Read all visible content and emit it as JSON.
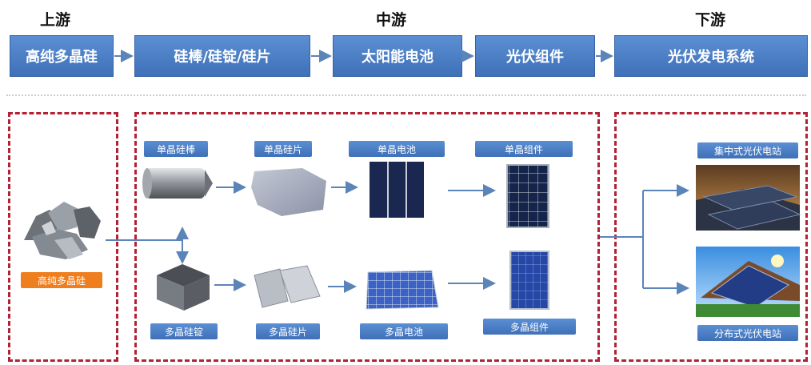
{
  "stages": {
    "upstream": "上游",
    "midstream": "中游",
    "downstream": "下游"
  },
  "flow": [
    "高纯多晶硅",
    "硅棒/硅锭/硅片",
    "太阳能电池",
    "光伏组件",
    "光伏发电系统"
  ],
  "upstream_box": {
    "label": "高纯多晶硅"
  },
  "mono_row": {
    "ingot": "单晶硅棒",
    "wafer": "单晶硅片",
    "cell": "单晶电池",
    "module": "单晶组件"
  },
  "poly_row": {
    "ingot": "多晶硅锭",
    "wafer": "多晶硅片",
    "cell": "多晶电池",
    "module": "多晶组件"
  },
  "downstream_box": {
    "centralized": "集中式光伏电站",
    "distributed": "分布式光伏电站"
  },
  "colors": {
    "box_blue": "#4a7cc3",
    "dash_red": "#b22234",
    "tag_orange": "#ef7e1e",
    "arrow": "#5b84b8"
  }
}
